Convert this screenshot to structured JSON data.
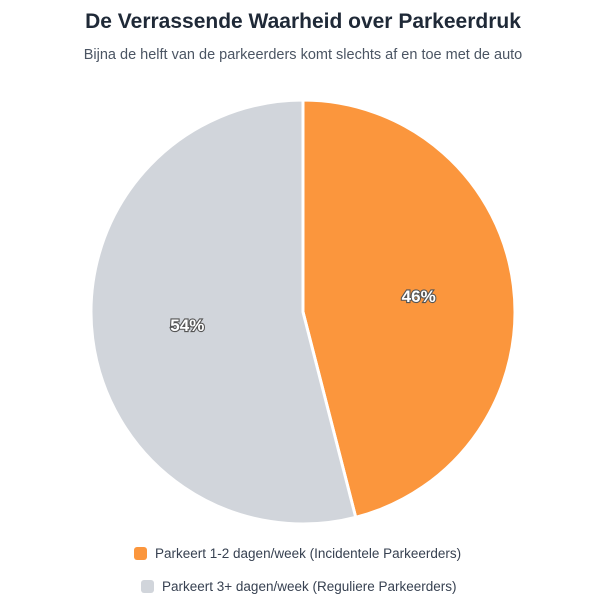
{
  "chart_data": {
    "type": "pie",
    "title": "De Verrassende Waarheid over Parkeerdruk",
    "subtitle": "Bijna de helft van de parkeerders komt slechts af en toe met de auto",
    "slices": [
      {
        "name": "Parkeert 1-2 dagen/week (Incidentele Parkeerders)",
        "value": 46,
        "label": "46%",
        "color": "#FB963D"
      },
      {
        "name": "Parkeert 3+ dagen/week (Reguliere Parkeerders)",
        "value": 54,
        "label": "54%",
        "color": "#D1D5DB"
      }
    ],
    "legend_position": "bottom"
  }
}
